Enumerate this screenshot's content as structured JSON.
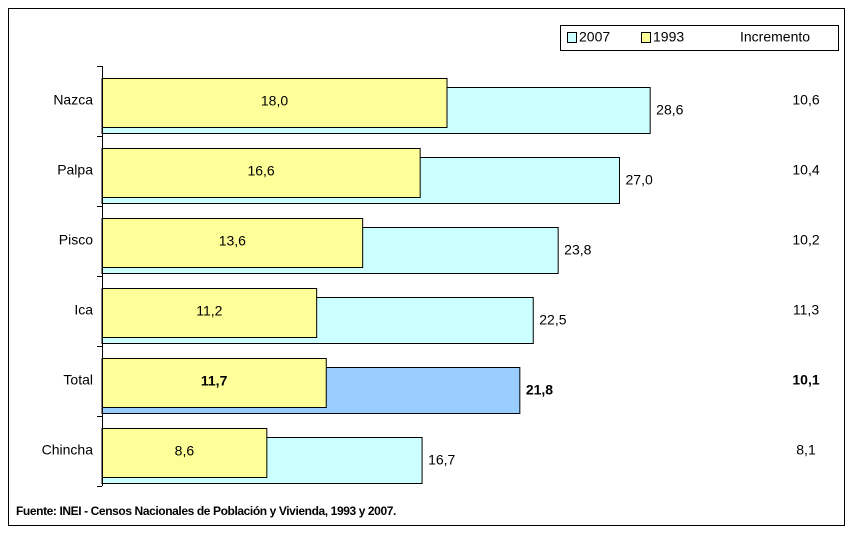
{
  "chart_data": {
    "type": "bar",
    "orientation": "horizontal",
    "overlap": true,
    "categories": [
      "Nazca",
      "Palpa",
      "Pisco",
      "Ica",
      "Total",
      "Chincha"
    ],
    "series": [
      {
        "name": "2007",
        "color": "#ccffff",
        "values": [
          28.6,
          27.0,
          23.8,
          22.5,
          21.8,
          16.7
        ],
        "value_labels": [
          "28,6",
          "27,0",
          "23,8",
          "22,5",
          "21,8",
          "16,7"
        ]
      },
      {
        "name": "1993",
        "color": "#ffff99",
        "values": [
          18.0,
          16.6,
          13.6,
          11.2,
          11.7,
          8.6
        ],
        "value_labels": [
          "18,0",
          "16,6",
          "13,6",
          "11,2",
          "11,7",
          "8,6"
        ]
      }
    ],
    "increment": {
      "name": "Incremento",
      "values": [
        10.6,
        10.4,
        10.2,
        11.3,
        10.1,
        8.1
      ],
      "value_labels": [
        "10,6",
        "10,4",
        "10,2",
        "11,3",
        "10,1",
        "8,1"
      ]
    },
    "highlight": {
      "index": 4,
      "color": "#99ccff"
    },
    "xlim": [
      0,
      30
    ],
    "legend": "top-right",
    "source": "Fuente: INEI - Censos Nacionales de Población y Vivienda, 1993 y 2007."
  }
}
